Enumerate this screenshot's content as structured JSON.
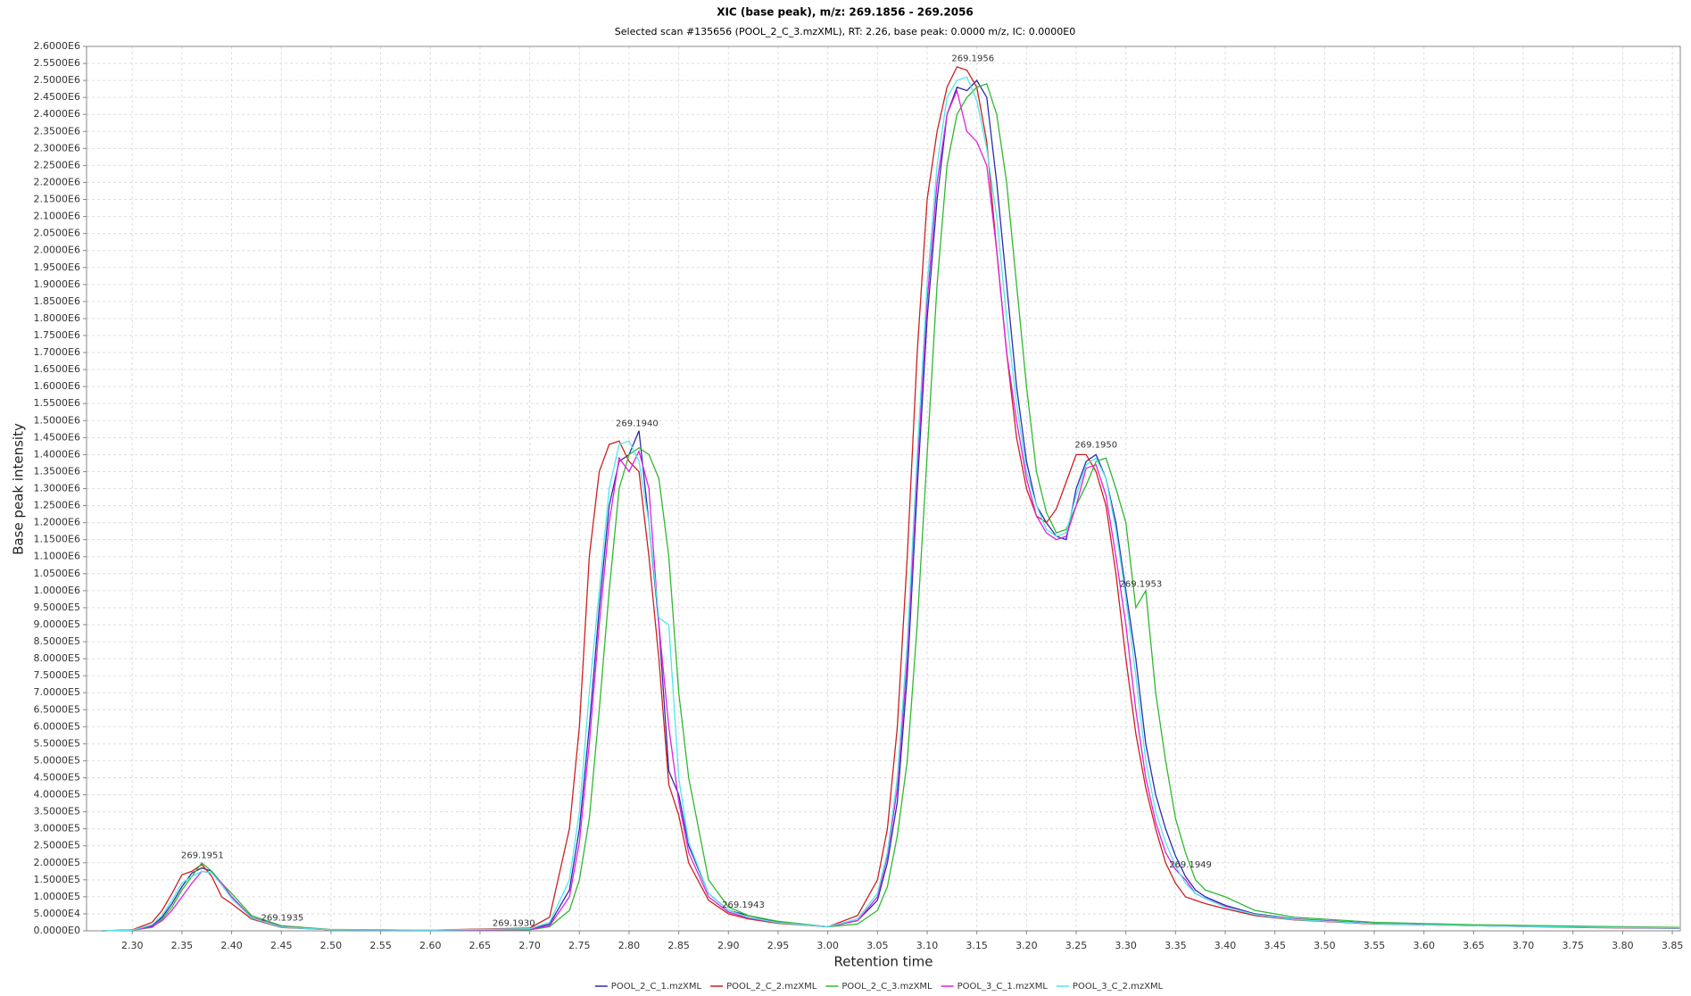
{
  "chart_data": {
    "type": "line",
    "title": "XIC (base peak), m/z: 269.1856 - 269.2056",
    "subtitle": "Selected scan #135656 (POOL_2_C_3.mzXML), RT: 2.26, base peak: 0.0000 m/z, IC: 0.0000E0",
    "x_label": "Retention time",
    "y_label": "Base peak intensity",
    "grid": true,
    "legend": "bottom",
    "xlim": [
      2.254,
      3.858
    ],
    "ylim": [
      0,
      2600000
    ],
    "xticks": [
      {
        "value": 2.3,
        "label": "2.30"
      },
      2.35,
      {
        "value": 2.4,
        "label": "2.40"
      },
      2.45,
      {
        "value": 2.5,
        "label": "2.50"
      },
      2.55,
      {
        "value": 2.6,
        "label": "2.60"
      },
      2.65,
      {
        "value": 2.7,
        "label": "2.70"
      },
      2.75,
      {
        "value": 2.8,
        "label": "2.80"
      },
      2.85,
      {
        "value": 2.9,
        "label": "2.90"
      },
      2.95,
      {
        "value": 3,
        "label": "3.00"
      },
      3.05,
      {
        "value": 3.1,
        "label": "3.10"
      },
      3.15,
      {
        "value": 3.2,
        "label": "3.20"
      },
      3.25,
      {
        "value": 3.3,
        "label": "3.30"
      },
      3.35,
      {
        "value": 3.4,
        "label": "3.40"
      },
      3.45,
      {
        "value": 3.5,
        "label": "3.50"
      },
      3.55,
      {
        "value": 3.6,
        "label": "3.60"
      },
      3.65,
      {
        "value": 3.7,
        "label": "3.70"
      },
      3.75,
      {
        "value": 3.8,
        "label": "3.80"
      },
      3.85
    ],
    "yticks": [
      {
        "value": 0,
        "label": "0.0000E0"
      },
      {
        "value": 50000,
        "label": "5.0000E4"
      },
      {
        "value": 100000,
        "label": "1.0000E5"
      },
      {
        "value": 150000,
        "label": "1.5000E5"
      },
      {
        "value": 200000,
        "label": "2.0000E5"
      },
      {
        "value": 250000,
        "label": "2.5000E5"
      },
      {
        "value": 300000,
        "label": "3.0000E5"
      },
      {
        "value": 350000,
        "label": "3.5000E5"
      },
      {
        "value": 400000,
        "label": "4.0000E5"
      },
      {
        "value": 450000,
        "label": "4.5000E5"
      },
      {
        "value": 500000,
        "label": "5.0000E5"
      },
      {
        "value": 550000,
        "label": "5.5000E5"
      },
      {
        "value": 600000,
        "label": "6.0000E5"
      },
      {
        "value": 650000,
        "label": "6.5000E5"
      },
      {
        "value": 700000,
        "label": "7.0000E5"
      },
      {
        "value": 750000,
        "label": "7.5000E5"
      },
      {
        "value": 800000,
        "label": "8.0000E5"
      },
      {
        "value": 850000,
        "label": "8.5000E5"
      },
      {
        "value": 900000,
        "label": "9.0000E5"
      },
      {
        "value": 950000,
        "label": "9.5000E5"
      },
      {
        "value": 1000000,
        "label": "1.0000E6"
      },
      {
        "value": 1050000,
        "label": "1.0500E6"
      },
      {
        "value": 1100000,
        "label": "1.1000E6"
      },
      {
        "value": 1150000,
        "label": "1.1500E6"
      },
      {
        "value": 1200000,
        "label": "1.2000E6"
      },
      {
        "value": 1250000,
        "label": "1.2500E6"
      },
      {
        "value": 1300000,
        "label": "1.3000E6"
      },
      {
        "value": 1350000,
        "label": "1.3500E6"
      },
      {
        "value": 1400000,
        "label": "1.4000E6"
      },
      {
        "value": 1450000,
        "label": "1.4500E6"
      },
      {
        "value": 1500000,
        "label": "1.5000E6"
      },
      {
        "value": 1550000,
        "label": "1.5500E6"
      },
      {
        "value": 1600000,
        "label": "1.6000E6"
      },
      {
        "value": 1650000,
        "label": "1.6500E6"
      },
      {
        "value": 1700000,
        "label": "1.7000E6"
      },
      {
        "value": 1750000,
        "label": "1.7500E6"
      },
      {
        "value": 1800000,
        "label": "1.8000E6"
      },
      {
        "value": 1850000,
        "label": "1.8500E6"
      },
      {
        "value": 1900000,
        "label": "1.9000E6"
      },
      {
        "value": 1950000,
        "label": "1.9500E6"
      },
      {
        "value": 2000000,
        "label": "2.0000E6"
      },
      {
        "value": 2050000,
        "label": "2.0500E6"
      },
      {
        "value": 2100000,
        "label": "2.1000E6"
      },
      {
        "value": 2150000,
        "label": "2.1500E6"
      },
      {
        "value": 2200000,
        "label": "2.2000E6"
      },
      {
        "value": 2250000,
        "label": "2.2500E6"
      },
      {
        "value": 2300000,
        "label": "2.3000E6"
      },
      {
        "value": 2350000,
        "label": "2.3500E6"
      },
      {
        "value": 2400000,
        "label": "2.4000E6"
      },
      {
        "value": 2450000,
        "label": "2.4500E6"
      },
      {
        "value": 2500000,
        "label": "2.5000E6"
      },
      {
        "value": 2550000,
        "label": "2.5500E6"
      },
      {
        "value": 2600000,
        "label": "2.6000E6"
      }
    ],
    "x": [
      2.27,
      2.3,
      2.32,
      2.33,
      2.34,
      2.35,
      2.36,
      2.37,
      2.38,
      2.39,
      2.4,
      2.42,
      2.45,
      2.5,
      2.6,
      2.7,
      2.72,
      2.74,
      2.75,
      2.76,
      2.77,
      2.78,
      2.79,
      2.8,
      2.81,
      2.82,
      2.83,
      2.84,
      2.85,
      2.86,
      2.88,
      2.9,
      2.92,
      2.95,
      3.0,
      3.03,
      3.05,
      3.06,
      3.07,
      3.08,
      3.09,
      3.1,
      3.11,
      3.12,
      3.13,
      3.14,
      3.15,
      3.16,
      3.17,
      3.18,
      3.19,
      3.2,
      3.21,
      3.22,
      3.23,
      3.24,
      3.25,
      3.26,
      3.27,
      3.28,
      3.29,
      3.3,
      3.31,
      3.32,
      3.33,
      3.34,
      3.35,
      3.36,
      3.37,
      3.38,
      3.4,
      3.43,
      3.47,
      3.55,
      3.65,
      3.75,
      3.857
    ],
    "series": [
      {
        "name": "POOL_2_C_1.mzXML",
        "color": "#2b2bb0",
        "values": [
          0,
          2000,
          15000,
          40000,
          80000,
          130000,
          170000,
          185000,
          175000,
          140000,
          100000,
          40000,
          12000,
          3000,
          2000,
          5000,
          20000,
          120000,
          300000,
          600000,
          950000,
          1250000,
          1380000,
          1400000,
          1470000,
          1200000,
          900000,
          470000,
          400000,
          250000,
          110000,
          60000,
          45000,
          25000,
          12000,
          30000,
          90000,
          200000,
          380000,
          750000,
          1300000,
          1800000,
          2150000,
          2400000,
          2480000,
          2470000,
          2500000,
          2450000,
          2200000,
          1900000,
          1600000,
          1380000,
          1250000,
          1200000,
          1160000,
          1150000,
          1300000,
          1380000,
          1400000,
          1330000,
          1200000,
          1000000,
          800000,
          550000,
          400000,
          300000,
          220000,
          160000,
          120000,
          100000,
          75000,
          50000,
          35000,
          22000,
          16000,
          12000,
          8000
        ]
      },
      {
        "name": "POOL_2_C_2.mzXML",
        "color": "#cc2020",
        "values": [
          0,
          3000,
          25000,
          60000,
          110000,
          165000,
          175000,
          195000,
          160000,
          100000,
          80000,
          35000,
          10000,
          3000,
          2000,
          8000,
          40000,
          300000,
          600000,
          1100000,
          1350000,
          1430000,
          1440000,
          1380000,
          1350000,
          1100000,
          800000,
          430000,
          340000,
          200000,
          90000,
          50000,
          35000,
          22000,
          12000,
          45000,
          150000,
          300000,
          600000,
          1100000,
          1700000,
          2150000,
          2350000,
          2480000,
          2540000,
          2530000,
          2480000,
          2320000,
          2000000,
          1700000,
          1450000,
          1300000,
          1220000,
          1200000,
          1240000,
          1320000,
          1400000,
          1400000,
          1350000,
          1250000,
          1050000,
          800000,
          580000,
          420000,
          300000,
          200000,
          140000,
          100000,
          90000,
          80000,
          65000,
          45000,
          32000,
          20000,
          15000,
          10000,
          7000
        ]
      },
      {
        "name": "POOL_2_C_3.mzXML",
        "color": "#30b830",
        "values": [
          0,
          2000,
          10000,
          35000,
          70000,
          120000,
          160000,
          200000,
          175000,
          140000,
          110000,
          45000,
          15000,
          4000,
          2000,
          3000,
          12000,
          60000,
          150000,
          330000,
          650000,
          1000000,
          1300000,
          1400000,
          1420000,
          1400000,
          1330000,
          1100000,
          700000,
          450000,
          150000,
          70000,
          45000,
          28000,
          12000,
          20000,
          60000,
          130000,
          280000,
          500000,
          900000,
          1400000,
          1900000,
          2250000,
          2400000,
          2450000,
          2480000,
          2490000,
          2400000,
          2200000,
          1900000,
          1600000,
          1350000,
          1230000,
          1170000,
          1180000,
          1250000,
          1310000,
          1380000,
          1390000,
          1300000,
          1200000,
          950000,
          1000000,
          700000,
          500000,
          330000,
          230000,
          150000,
          120000,
          100000,
          60000,
          40000,
          25000,
          18000,
          14000,
          10000
        ]
      },
      {
        "name": "POOL_3_C_1.mzXML",
        "color": "#e020e0",
        "values": [
          0,
          2000,
          12000,
          30000,
          60000,
          100000,
          140000,
          175000,
          170000,
          140000,
          100000,
          40000,
          12000,
          3000,
          2000,
          4000,
          15000,
          100000,
          260000,
          550000,
          900000,
          1200000,
          1390000,
          1350000,
          1410000,
          1300000,
          900000,
          600000,
          380000,
          230000,
          100000,
          55000,
          38000,
          24000,
          12000,
          30000,
          100000,
          220000,
          420000,
          800000,
          1350000,
          1850000,
          2200000,
          2400000,
          2470000,
          2350000,
          2320000,
          2250000,
          2000000,
          1700000,
          1500000,
          1330000,
          1220000,
          1170000,
          1150000,
          1160000,
          1250000,
          1360000,
          1370000,
          1280000,
          1100000,
          900000,
          650000,
          450000,
          320000,
          230000,
          180000,
          150000,
          110000,
          95000,
          72000,
          48000,
          34000,
          21000,
          15000,
          11000,
          8000
        ]
      },
      {
        "name": "POOL_3_C_2.mzXML",
        "color": "#50e8e8",
        "values": [
          0,
          2000,
          18000,
          45000,
          90000,
          140000,
          160000,
          175000,
          170000,
          135000,
          95000,
          38000,
          11000,
          3000,
          2000,
          6000,
          25000,
          150000,
          350000,
          700000,
          1000000,
          1300000,
          1430000,
          1440000,
          1380000,
          1200000,
          920000,
          900000,
          450000,
          260000,
          110000,
          60000,
          40000,
          24000,
          12000,
          35000,
          110000,
          230000,
          450000,
          850000,
          1400000,
          1900000,
          2250000,
          2450000,
          2500000,
          2510000,
          2440000,
          2300000,
          2100000,
          1800000,
          1550000,
          1350000,
          1250000,
          1180000,
          1160000,
          1170000,
          1280000,
          1370000,
          1390000,
          1330000,
          1180000,
          980000,
          750000,
          500000,
          350000,
          260000,
          190000,
          140000,
          110000,
          95000,
          70000,
          48000,
          33000,
          21000,
          15000,
          11000,
          8000
        ]
      }
    ],
    "annotations": [
      {
        "text": "269.1951",
        "x": 2.3706,
        "y": 222000
      },
      {
        "text": "269.1935",
        "x": 2.451,
        "y": 38000
      },
      {
        "text": "269.1930",
        "x": 2.684,
        "y": 22000
      },
      {
        "text": "269.1940",
        "x": 2.808,
        "y": 1492000
      },
      {
        "text": "269.1943",
        "x": 2.915,
        "y": 76000
      },
      {
        "text": "269.1956",
        "x": 3.146,
        "y": 2565000
      },
      {
        "text": "269.1950",
        "x": 3.27,
        "y": 1428000
      },
      {
        "text": "269.1953",
        "x": 3.315,
        "y": 1019000
      },
      {
        "text": "269.1949",
        "x": 3.365,
        "y": 194000
      }
    ]
  }
}
